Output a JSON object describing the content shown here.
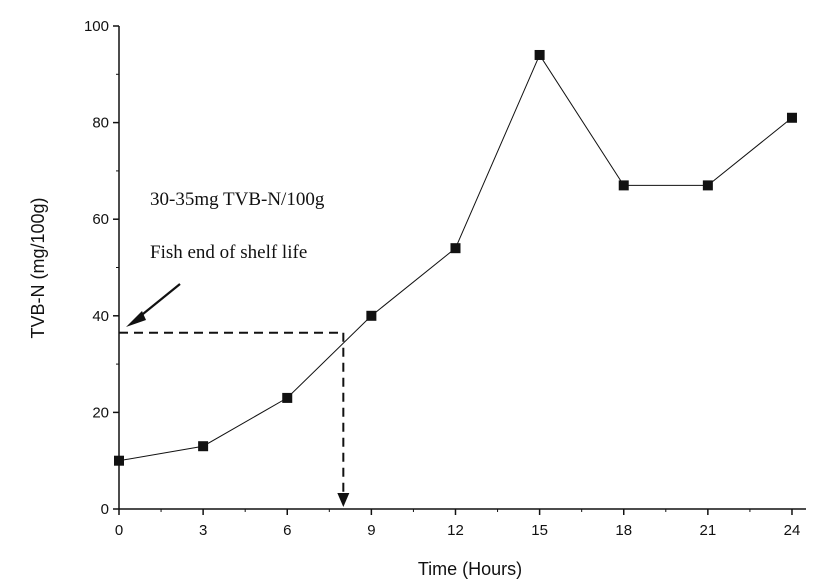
{
  "chart_data": {
    "type": "line",
    "xlabel": "Time (Hours)",
    "ylabel": "TVB-N (mg/100g)",
    "xlim": [
      0,
      24.5
    ],
    "ylim": [
      0,
      100
    ],
    "x_ticks": [
      0,
      3,
      6,
      9,
      12,
      15,
      18,
      21,
      24
    ],
    "y_ticks": [
      0,
      20,
      40,
      60,
      80,
      100
    ],
    "grid": false,
    "series": [
      {
        "x": [
          0,
          3,
          6,
          9,
          12,
          15,
          18,
          21,
          24
        ],
        "y": [
          10,
          13,
          23,
          40,
          54,
          94,
          67,
          67,
          81
        ],
        "marker": "square",
        "color": "#111111"
      }
    ],
    "annotations": {
      "line1": "30-35mg TVB-N/100g",
      "line2": "Fish end of shelf life",
      "threshold_y": 36.5,
      "threshold_x": 8
    }
  }
}
